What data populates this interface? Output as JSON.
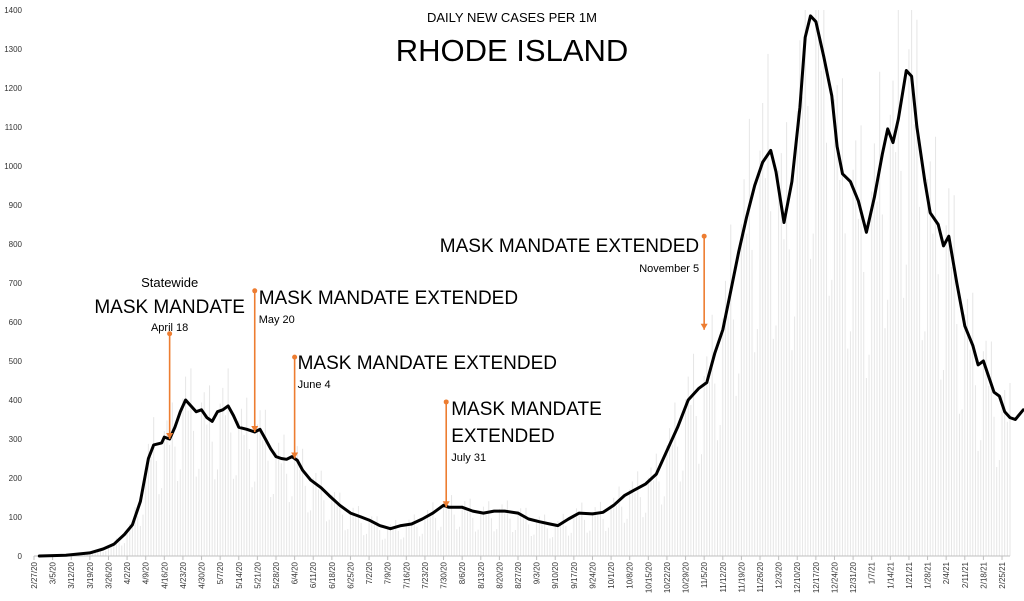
{
  "chart_data": {
    "type": "line",
    "subtitle": "DAILY NEW CASES PER 1M",
    "title": "RHODE ISLAND",
    "ylim": [
      0,
      1400
    ],
    "yticks": [
      0,
      100,
      200,
      300,
      400,
      500,
      600,
      700,
      800,
      900,
      1000,
      1100,
      1200,
      1300,
      1400
    ],
    "x_start": "2020-02-27",
    "x_end": "2021-02-28",
    "xtick_labels": [
      "2/27/20",
      "3/5/20",
      "3/12/20",
      "3/19/20",
      "3/26/20",
      "4/2/20",
      "4/9/20",
      "4/16/20",
      "4/23/20",
      "4/30/20",
      "5/7/20",
      "5/14/20",
      "5/21/20",
      "5/28/20",
      "6/4/20",
      "6/11/20",
      "6/18/20",
      "6/25/20",
      "7/2/20",
      "7/9/20",
      "7/16/20",
      "7/23/20",
      "7/30/20",
      "8/6/20",
      "8/13/20",
      "8/20/20",
      "8/27/20",
      "9/3/20",
      "9/10/20",
      "9/17/20",
      "9/24/20",
      "10/1/20",
      "10/8/20",
      "10/15/20",
      "10/22/20",
      "10/29/20",
      "11/5/20",
      "11/12/20",
      "11/19/20",
      "11/26/20",
      "12/3/20",
      "12/10/20",
      "12/17/20",
      "12/24/20",
      "12/31/20",
      "1/7/21",
      "1/14/21",
      "1/21/21",
      "1/28/21",
      "2/4/21",
      "2/11/21",
      "2/18/21",
      "2/25/21"
    ],
    "grid": false,
    "line_color": "#000000",
    "annotation_color": "#ED7D31",
    "series": [
      {
        "points": [
          [
            "2020-02-29",
            0
          ],
          [
            "2020-03-10",
            2
          ],
          [
            "2020-03-19",
            8
          ],
          [
            "2020-03-24",
            18
          ],
          [
            "2020-03-28",
            30
          ],
          [
            "2020-04-01",
            55
          ],
          [
            "2020-04-04",
            80
          ],
          [
            "2020-04-07",
            140
          ],
          [
            "2020-04-10",
            250
          ],
          [
            "2020-04-12",
            285
          ],
          [
            "2020-04-15",
            290
          ],
          [
            "2020-04-16",
            305
          ],
          [
            "2020-04-18",
            300
          ],
          [
            "2020-04-20",
            330
          ],
          [
            "2020-04-22",
            370
          ],
          [
            "2020-04-24",
            400
          ],
          [
            "2020-04-26",
            385
          ],
          [
            "2020-04-28",
            370
          ],
          [
            "2020-04-30",
            375
          ],
          [
            "2020-05-02",
            355
          ],
          [
            "2020-05-04",
            345
          ],
          [
            "2020-05-06",
            370
          ],
          [
            "2020-05-08",
            375
          ],
          [
            "2020-05-10",
            385
          ],
          [
            "2020-05-12",
            360
          ],
          [
            "2020-05-14",
            330
          ],
          [
            "2020-05-17",
            325
          ],
          [
            "2020-05-20",
            318
          ],
          [
            "2020-05-22",
            325
          ],
          [
            "2020-05-24",
            300
          ],
          [
            "2020-05-26",
            275
          ],
          [
            "2020-05-28",
            255
          ],
          [
            "2020-05-30",
            250
          ],
          [
            "2020-06-01",
            248
          ],
          [
            "2020-06-03",
            255
          ],
          [
            "2020-06-05",
            245
          ],
          [
            "2020-06-07",
            220
          ],
          [
            "2020-06-10",
            195
          ],
          [
            "2020-06-14",
            175
          ],
          [
            "2020-06-17",
            155
          ],
          [
            "2020-06-21",
            130
          ],
          [
            "2020-06-25",
            110
          ],
          [
            "2020-06-29",
            100
          ],
          [
            "2020-07-02",
            92
          ],
          [
            "2020-07-06",
            78
          ],
          [
            "2020-07-10",
            70
          ],
          [
            "2020-07-14",
            78
          ],
          [
            "2020-07-18",
            82
          ],
          [
            "2020-07-22",
            95
          ],
          [
            "2020-07-26",
            110
          ],
          [
            "2020-07-30",
            130
          ],
          [
            "2020-08-01",
            125
          ],
          [
            "2020-08-06",
            125
          ],
          [
            "2020-08-10",
            115
          ],
          [
            "2020-08-14",
            110
          ],
          [
            "2020-08-18",
            115
          ],
          [
            "2020-08-22",
            115
          ],
          [
            "2020-08-27",
            110
          ],
          [
            "2020-08-31",
            95
          ],
          [
            "2020-09-04",
            88
          ],
          [
            "2020-09-08",
            82
          ],
          [
            "2020-09-11",
            78
          ],
          [
            "2020-09-15",
            95
          ],
          [
            "2020-09-19",
            110
          ],
          [
            "2020-09-24",
            108
          ],
          [
            "2020-09-28",
            112
          ],
          [
            "2020-10-02",
            130
          ],
          [
            "2020-10-06",
            155
          ],
          [
            "2020-10-10",
            170
          ],
          [
            "2020-10-14",
            185
          ],
          [
            "2020-10-18",
            210
          ],
          [
            "2020-10-22",
            270
          ],
          [
            "2020-10-26",
            330
          ],
          [
            "2020-10-30",
            400
          ],
          [
            "2020-11-03",
            430
          ],
          [
            "2020-11-06",
            445
          ],
          [
            "2020-11-09",
            520
          ],
          [
            "2020-11-12",
            580
          ],
          [
            "2020-11-15",
            680
          ],
          [
            "2020-11-18",
            780
          ],
          [
            "2020-11-21",
            870
          ],
          [
            "2020-11-24",
            950
          ],
          [
            "2020-11-27",
            1010
          ],
          [
            "2020-11-30",
            1040
          ],
          [
            "2020-12-02",
            985
          ],
          [
            "2020-12-05",
            855
          ],
          [
            "2020-12-08",
            960
          ],
          [
            "2020-12-11",
            1150
          ],
          [
            "2020-12-13",
            1330
          ],
          [
            "2020-12-15",
            1385
          ],
          [
            "2020-12-17",
            1370
          ],
          [
            "2020-12-20",
            1280
          ],
          [
            "2020-12-23",
            1180
          ],
          [
            "2020-12-25",
            1050
          ],
          [
            "2020-12-27",
            980
          ],
          [
            "2020-12-30",
            960
          ],
          [
            "2021-01-02",
            910
          ],
          [
            "2021-01-05",
            830
          ],
          [
            "2021-01-08",
            920
          ],
          [
            "2021-01-11",
            1030
          ],
          [
            "2021-01-13",
            1095
          ],
          [
            "2021-01-15",
            1060
          ],
          [
            "2021-01-17",
            1120
          ],
          [
            "2021-01-20",
            1245
          ],
          [
            "2021-01-22",
            1230
          ],
          [
            "2021-01-24",
            1100
          ],
          [
            "2021-01-27",
            960
          ],
          [
            "2021-01-29",
            880
          ],
          [
            "2021-02-01",
            850
          ],
          [
            "2021-02-03",
            795
          ],
          [
            "2021-02-05",
            820
          ],
          [
            "2021-02-08",
            700
          ],
          [
            "2021-02-11",
            590
          ],
          [
            "2021-02-14",
            540
          ],
          [
            "2021-02-16",
            490
          ],
          [
            "2021-02-18",
            500
          ],
          [
            "2021-02-20",
            460
          ],
          [
            "2021-02-22",
            420
          ],
          [
            "2021-02-24",
            410
          ],
          [
            "2021-02-26",
            370
          ],
          [
            "2021-02-28",
            355
          ],
          [
            "2021-03-02",
            350
          ],
          [
            "2021-03-05",
            375
          ]
        ]
      }
    ],
    "annotations": [
      {
        "date": "2020-04-18",
        "top": 570,
        "bottom": 300,
        "label": "MASK MANDATE",
        "prefix": "Statewide",
        "sub": "April 18"
      },
      {
        "date": "2020-05-20",
        "top": 680,
        "bottom": 318,
        "label": "MASK MANDATE EXTENDED",
        "sub": "May 20"
      },
      {
        "date": "2020-06-04",
        "top": 510,
        "bottom": 250,
        "label": "MASK MANDATE EXTENDED",
        "sub": "June 4"
      },
      {
        "date": "2020-07-31",
        "top": 395,
        "bottom": 125,
        "label": "MASK MANDATE",
        "label2": "EXTENDED",
        "sub": "July 31"
      },
      {
        "date": "2020-11-05",
        "top": 820,
        "bottom": 580,
        "label": "MASK MANDATE EXTENDED",
        "sub": "November 5"
      }
    ]
  }
}
